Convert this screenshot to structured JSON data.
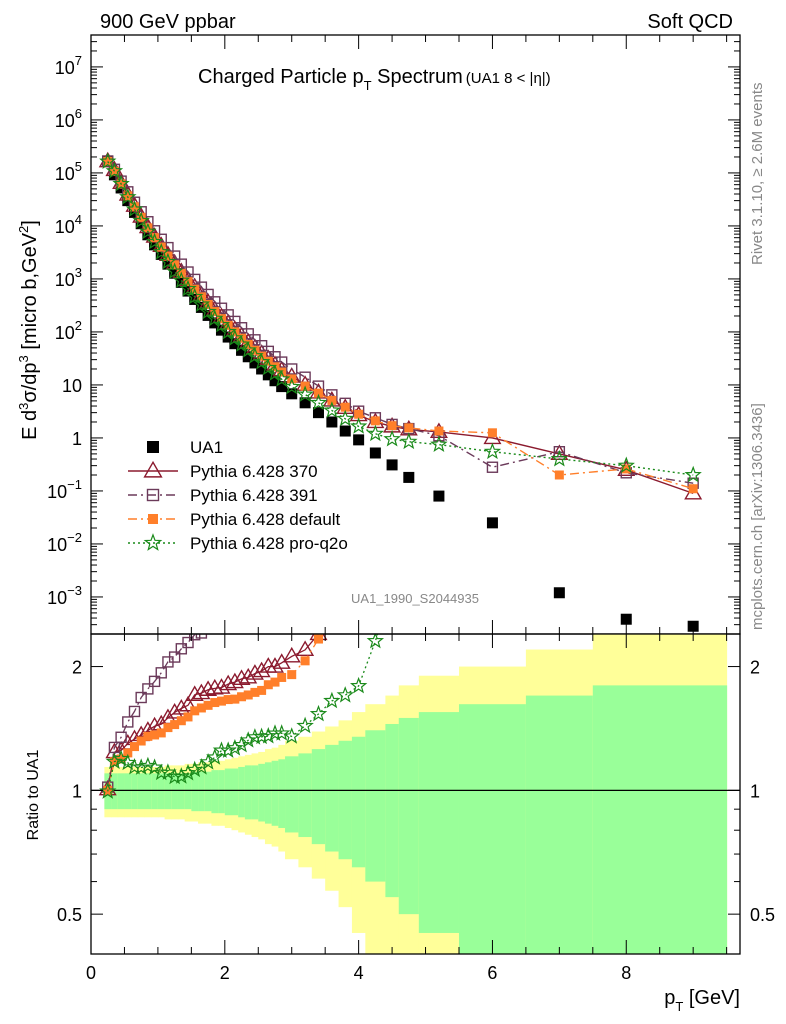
{
  "header": {
    "left": "900 GeV ppbar",
    "right": "Soft QCD"
  },
  "side": {
    "rivet": "Rivet 3.1.10, ≥ 2.6M events",
    "mcplots": "mcplots.cern.ch [arXiv:1306.3436]"
  },
  "watermark": "UA1_1990_S2044935",
  "chart_data": [
    {
      "type": "scatter",
      "title": "Charged Particle p_T Spectrum (UA1  8 < |η|)",
      "title_parts": {
        "main": "Charged Particle p",
        "sub": "T",
        "rest": " Spectrum",
        "small": "(UA1   8 < |η|)"
      },
      "ylabel": "E d³σ/dp³ [micro b,GeV²]",
      "yscale": "log",
      "xlim": [
        0,
        9.7
      ],
      "ylim": [
        0.0002,
        40000000
      ],
      "ytick_labels": [
        {
          "v": 0.001,
          "m": "10",
          "e": "−3"
        },
        {
          "v": 0.01,
          "m": "10",
          "e": "−2"
        },
        {
          "v": 0.1,
          "m": "10",
          "e": "−1"
        },
        {
          "v": 1,
          "m": "1",
          "e": ""
        },
        {
          "v": 10,
          "m": "10",
          "e": ""
        },
        {
          "v": 100,
          "m": "10",
          "e": "2"
        },
        {
          "v": 1000,
          "m": "10",
          "e": "3"
        },
        {
          "v": 10000,
          "m": "10",
          "e": "4"
        },
        {
          "v": 100000,
          "m": "10",
          "e": "5"
        },
        {
          "v": 1000000,
          "m": "10",
          "e": "6"
        },
        {
          "v": 10000000,
          "m": "10",
          "e": "7"
        }
      ],
      "legend_position": "lower-left",
      "series": [
        {
          "name": "UA1",
          "marker": "square",
          "color": "#000000",
          "x": [
            0.25,
            0.35,
            0.45,
            0.55,
            0.65,
            0.75,
            0.85,
            0.95,
            1.05,
            1.15,
            1.25,
            1.35,
            1.45,
            1.55,
            1.65,
            1.75,
            1.85,
            1.95,
            2.05,
            2.15,
            2.25,
            2.35,
            2.45,
            2.55,
            2.65,
            2.75,
            2.85,
            3.0,
            3.2,
            3.4,
            3.6,
            3.8,
            4.0,
            4.25,
            4.5,
            4.75,
            5.2,
            6.0,
            7.0,
            8.0,
            9.0
          ],
          "y": [
            165000,
            92000,
            52000,
            30000,
            18000,
            11000,
            6800,
            4400,
            2900,
            1900,
            1280,
            860,
            590,
            410,
            290,
            205,
            148,
            108,
            80,
            60,
            45,
            34,
            26,
            20,
            15.5,
            12,
            9.3,
            6.8,
            4.6,
            3.0,
            2.0,
            1.35,
            0.92,
            0.52,
            0.31,
            0.18,
            0.08,
            0.025,
            0.0012,
            0.00038,
            0.00028
          ]
        },
        {
          "name": "Pythia 6.428 370",
          "marker": "triangle-open",
          "color": "#8b1a2e",
          "line": "solid",
          "x": [
            0.25,
            0.35,
            0.45,
            0.55,
            0.65,
            0.75,
            0.85,
            0.95,
            1.05,
            1.15,
            1.25,
            1.35,
            1.45,
            1.55,
            1.65,
            1.75,
            1.85,
            1.95,
            2.05,
            2.15,
            2.25,
            2.35,
            2.45,
            2.55,
            2.65,
            2.75,
            2.85,
            3.0,
            3.2,
            3.4,
            3.6,
            3.8,
            4.0,
            4.25,
            4.5,
            4.75,
            5.2,
            6.0,
            7.0,
            8.0,
            9.0
          ],
          "y": [
            166000,
            114000,
            65000,
            39000,
            24000,
            15000,
            9500,
            6300,
            4200,
            2850,
            1980,
            1360,
            950,
            700,
            500,
            360,
            262,
            192,
            145,
            110,
            84,
            64,
            50,
            39,
            31,
            24,
            19,
            14.4,
            10.1,
            7.2,
            5.1,
            3.7,
            2.7,
            2.0,
            1.65,
            1.45,
            1.3,
            1.0,
            0.5,
            0.25,
            0.09
          ]
        },
        {
          "name": "Pythia 6.428 391",
          "marker": "square-open",
          "color": "#6b3a5a",
          "line": "dashdot",
          "x": [
            0.25,
            0.35,
            0.45,
            0.55,
            0.65,
            0.75,
            0.85,
            0.95,
            1.05,
            1.15,
            1.25,
            1.35,
            1.45,
            1.55,
            1.65,
            1.75,
            1.85,
            1.95,
            2.05,
            2.15,
            2.25,
            2.35,
            2.45,
            2.55,
            2.65,
            2.75,
            2.85,
            3.0,
            3.2,
            3.4,
            3.6,
            3.8,
            4.0,
            4.25,
            4.5,
            4.75,
            5.2,
            6.0,
            7.0,
            8.0,
            9.0
          ],
          "y": [
            168000,
            117000,
            70000,
            44000,
            28000,
            18500,
            12000,
            8100,
            5600,
            3900,
            2700,
            1900,
            1350,
            980,
            700,
            510,
            370,
            280,
            210,
            158,
            120,
            92,
            71,
            55,
            43,
            34,
            27,
            20,
            14,
            9.5,
            6.5,
            4.5,
            3.2,
            2.4,
            1.8,
            1.5,
            1.1,
            0.28,
            0.55,
            0.22,
            0.14
          ]
        },
        {
          "name": "Pythia 6.428 default",
          "marker": "square-filled",
          "color": "#ff7f2a",
          "line": "dashdot",
          "x": [
            0.25,
            0.35,
            0.45,
            0.55,
            0.65,
            0.75,
            0.85,
            0.95,
            1.05,
            1.15,
            1.25,
            1.35,
            1.45,
            1.55,
            1.65,
            1.75,
            1.85,
            1.95,
            2.05,
            2.15,
            2.25,
            2.35,
            2.45,
            2.55,
            2.65,
            2.75,
            2.85,
            3.0,
            3.2,
            3.4,
            3.6,
            3.8,
            4.0,
            4.25,
            4.5,
            4.75,
            5.2,
            6.0,
            7.0,
            8.0,
            9.0
          ],
          "y": [
            165000,
            108000,
            62000,
            37000,
            23000,
            14500,
            9200,
            6000,
            4000,
            2700,
            1850,
            1270,
            890,
            640,
            460,
            330,
            242,
            178,
            133,
            100,
            76,
            58,
            45,
            35,
            28,
            22,
            17.5,
            13,
            9.5,
            7.0,
            5.1,
            3.8,
            2.8,
            2.1,
            1.7,
            1.55,
            1.35,
            1.25,
            0.2,
            0.26,
            0.11
          ]
        },
        {
          "name": "Pythia 6.428 pro-q2o",
          "marker": "star-open",
          "color": "#1a8a1a",
          "line": "dotted",
          "x": [
            0.25,
            0.35,
            0.45,
            0.55,
            0.65,
            0.75,
            0.85,
            0.95,
            1.05,
            1.15,
            1.25,
            1.35,
            1.45,
            1.55,
            1.65,
            1.75,
            1.85,
            1.95,
            2.05,
            2.15,
            2.25,
            2.35,
            2.45,
            2.55,
            2.65,
            2.75,
            2.85,
            3.0,
            3.2,
            3.4,
            3.6,
            3.8,
            4.0,
            4.25,
            4.5,
            4.75,
            5.2,
            6.0,
            7.0,
            8.0,
            9.0
          ],
          "y": [
            164000,
            108000,
            62000,
            35000,
            20500,
            12500,
            7800,
            5000,
            3200,
            2100,
            1380,
            930,
            650,
            460,
            330,
            240,
            178,
            135,
            100,
            76,
            58,
            45,
            35,
            27,
            21,
            16.5,
            12.8,
            9.2,
            6.6,
            4.6,
            3.3,
            2.3,
            1.65,
            1.2,
            0.95,
            0.85,
            0.75,
            0.55,
            0.4,
            0.3,
            0.2
          ]
        }
      ]
    },
    {
      "type": "line",
      "ylabel": "Ratio to UA1",
      "xlabel": "p_T [GeV]",
      "xlabel_parts": {
        "main": "p",
        "sub": "T",
        "rest": " [GeV]"
      },
      "xlim": [
        0,
        9.7
      ],
      "ylim": [
        0.4,
        2.4
      ],
      "yscale": "log",
      "xtick_labels": [
        0,
        2,
        4,
        6,
        8
      ],
      "ytick_labels": [
        0.5,
        1,
        2
      ],
      "reference_line": 1,
      "uncertainty_bands": {
        "edges": [
          0.2,
          0.3,
          0.4,
          0.5,
          0.6,
          0.7,
          0.8,
          0.9,
          1.0,
          1.1,
          1.2,
          1.3,
          1.4,
          1.5,
          1.6,
          1.7,
          1.8,
          1.9,
          2.0,
          2.1,
          2.2,
          2.3,
          2.4,
          2.5,
          2.6,
          2.7,
          2.8,
          2.9,
          3.1,
          3.3,
          3.5,
          3.7,
          3.9,
          4.1,
          4.4,
          4.6,
          4.9,
          5.5,
          6.5,
          7.5,
          9.5
        ],
        "green_half": [
          0.1,
          0.1,
          0.1,
          0.1,
          0.1,
          0.1,
          0.1,
          0.1,
          0.1,
          0.1,
          0.1,
          0.1,
          0.1,
          0.11,
          0.11,
          0.11,
          0.12,
          0.12,
          0.13,
          0.13,
          0.14,
          0.15,
          0.15,
          0.16,
          0.17,
          0.18,
          0.19,
          0.21,
          0.23,
          0.26,
          0.29,
          0.32,
          0.35,
          0.4,
          0.45,
          0.5,
          0.55,
          0.62,
          0.7,
          0.8
        ],
        "yellow_half": [
          0.14,
          0.14,
          0.14,
          0.14,
          0.14,
          0.14,
          0.14,
          0.14,
          0.14,
          0.15,
          0.15,
          0.15,
          0.16,
          0.16,
          0.17,
          0.17,
          0.18,
          0.18,
          0.19,
          0.2,
          0.21,
          0.22,
          0.23,
          0.24,
          0.26,
          0.27,
          0.29,
          0.32,
          0.35,
          0.39,
          0.43,
          0.48,
          0.55,
          0.62,
          0.7,
          0.8,
          0.9,
          1.0,
          1.2,
          1.4
        ]
      }
    }
  ]
}
